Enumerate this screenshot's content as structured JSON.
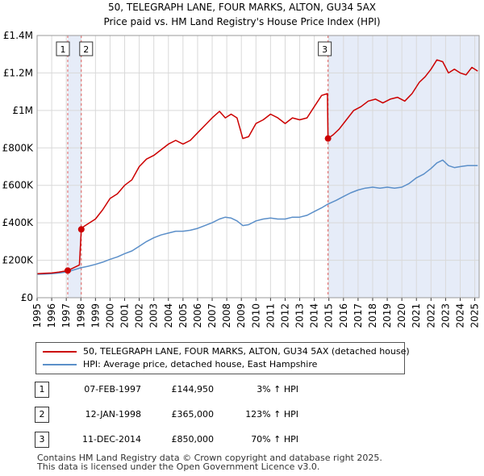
{
  "title_line1": "50, TELEGRAPH LANE, FOUR MARKS, ALTON, GU34 5AX",
  "title_line2": "Price paid vs. HM Land Registry's House Price Index (HPI)",
  "chart_data": {
    "type": "line",
    "xlim": [
      1995.0,
      2025.3
    ],
    "ylim": [
      0,
      1400000
    ],
    "y_ticks": [
      0,
      200000,
      400000,
      600000,
      800000,
      1000000,
      1200000,
      1400000
    ],
    "y_tick_labels": [
      "£0",
      "£200K",
      "£400K",
      "£600K",
      "£800K",
      "£1M",
      "£1.2M",
      "£1.4M"
    ],
    "x_ticks": [
      1995,
      1996,
      1997,
      1998,
      1999,
      2000,
      2001,
      2002,
      2003,
      2004,
      2005,
      2006,
      2007,
      2008,
      2009,
      2010,
      2011,
      2012,
      2013,
      2014,
      2015,
      2016,
      2017,
      2018,
      2019,
      2020,
      2021,
      2022,
      2023,
      2024,
      2025
    ],
    "x_tick_labels": [
      "1995",
      "1996",
      "1997",
      "1998",
      "1999",
      "2000",
      "2001",
      "2002",
      "2003",
      "2004",
      "2005",
      "2006",
      "2007",
      "2008",
      "2009",
      "2010",
      "2011",
      "2012",
      "2013",
      "2014",
      "2015",
      "2016",
      "2017",
      "2018",
      "2019",
      "2020",
      "2021",
      "2022",
      "2023",
      "2024",
      "2025"
    ],
    "grid": true,
    "series": [
      {
        "name": "50, TELEGRAPH LANE, FOUR MARKS, ALTON, GU34 5AX (detached house)",
        "color": "#cc0000",
        "x": [
          1995.0,
          1995.5,
          1996.0,
          1996.5,
          1997.1,
          1997.5,
          1997.9,
          1998.03,
          1998.2,
          1998.5,
          1999.0,
          1999.5,
          2000.0,
          2000.5,
          2001.0,
          2001.5,
          2002.0,
          2002.5,
          2003.0,
          2003.5,
          2004.0,
          2004.5,
          2005.0,
          2005.5,
          2006.0,
          2006.5,
          2007.0,
          2007.5,
          2007.9,
          2008.3,
          2008.7,
          2009.1,
          2009.5,
          2010.0,
          2010.5,
          2011.0,
          2011.5,
          2012.0,
          2012.5,
          2013.0,
          2013.5,
          2014.0,
          2014.5,
          2014.9,
          2014.94,
          2015.3,
          2015.7,
          2016.2,
          2016.7,
          2017.2,
          2017.7,
          2018.2,
          2018.7,
          2019.2,
          2019.7,
          2020.2,
          2020.7,
          2021.2,
          2021.6,
          2022.0,
          2022.4,
          2022.8,
          2023.2,
          2023.6,
          2024.0,
          2024.4,
          2024.8,
          2025.2
        ],
        "y": [
          128000,
          130000,
          132000,
          137000,
          144950,
          160000,
          175000,
          365000,
          380000,
          395000,
          420000,
          470000,
          530000,
          555000,
          600000,
          630000,
          700000,
          740000,
          760000,
          790000,
          820000,
          840000,
          820000,
          840000,
          880000,
          920000,
          960000,
          995000,
          960000,
          980000,
          960000,
          850000,
          860000,
          930000,
          950000,
          980000,
          960000,
          930000,
          960000,
          950000,
          960000,
          1020000,
          1080000,
          1090000,
          850000,
          870000,
          900000,
          950000,
          1000000,
          1020000,
          1050000,
          1060000,
          1040000,
          1060000,
          1070000,
          1050000,
          1090000,
          1150000,
          1180000,
          1220000,
          1270000,
          1260000,
          1200000,
          1220000,
          1200000,
          1190000,
          1230000,
          1210000
        ]
      },
      {
        "name": "HPI: Average price, detached house, East Hampshire",
        "color": "#5b8fc9",
        "x": [
          1995.0,
          1995.5,
          1996.0,
          1996.5,
          1997.1,
          1997.5,
          1998.0,
          1998.5,
          1999.0,
          1999.5,
          2000.0,
          2000.5,
          2001.0,
          2001.5,
          2002.0,
          2002.5,
          2003.0,
          2003.5,
          2004.0,
          2004.5,
          2005.0,
          2005.5,
          2006.0,
          2006.5,
          2007.0,
          2007.5,
          2007.9,
          2008.3,
          2008.7,
          2009.1,
          2009.5,
          2010.0,
          2010.5,
          2011.0,
          2011.5,
          2012.0,
          2012.5,
          2013.0,
          2013.5,
          2014.0,
          2014.5,
          2014.94,
          2015.5,
          2016.0,
          2016.5,
          2017.0,
          2017.5,
          2018.0,
          2018.5,
          2019.0,
          2019.5,
          2020.0,
          2020.5,
          2021.0,
          2021.5,
          2022.0,
          2022.4,
          2022.8,
          2023.2,
          2023.6,
          2024.0,
          2024.5,
          2025.2
        ],
        "y": [
          125000,
          126000,
          128000,
          132000,
          138000,
          148000,
          160000,
          168000,
          178000,
          190000,
          205000,
          218000,
          235000,
          250000,
          275000,
          300000,
          320000,
          335000,
          345000,
          355000,
          355000,
          360000,
          370000,
          385000,
          400000,
          420000,
          430000,
          425000,
          410000,
          385000,
          390000,
          410000,
          420000,
          425000,
          420000,
          420000,
          430000,
          430000,
          440000,
          460000,
          480000,
          500000,
          520000,
          540000,
          560000,
          575000,
          585000,
          590000,
          585000,
          590000,
          585000,
          590000,
          610000,
          640000,
          660000,
          690000,
          720000,
          735000,
          705000,
          695000,
          700000,
          705000,
          705000
        ]
      }
    ],
    "sales": [
      {
        "num": "1",
        "x": 1997.1,
        "y": 144950
      },
      {
        "num": "2",
        "x": 1998.03,
        "y": 365000
      },
      {
        "num": "3",
        "x": 2014.94,
        "y": 850000
      }
    ],
    "shaded_regions": [
      [
        1997.1,
        1998.03
      ],
      [
        2014.94,
        2025.3
      ]
    ]
  },
  "legend": {
    "property_label": "50, TELEGRAPH LANE, FOUR MARKS, ALTON, GU34 5AX (detached house)",
    "hpi_label": "HPI: Average price, detached house, East Hampshire",
    "property_color": "#cc0000",
    "hpi_color": "#5b8fc9"
  },
  "transactions": [
    {
      "num": "1",
      "date": "07-FEB-1997",
      "price": "£144,950",
      "hpi": "3% ↑ HPI"
    },
    {
      "num": "2",
      "date": "12-JAN-1998",
      "price": "£365,000",
      "hpi": "123% ↑ HPI"
    },
    {
      "num": "3",
      "date": "11-DEC-2014",
      "price": "£850,000",
      "hpi": "70% ↑ HPI"
    }
  ],
  "footer_line1": "Contains HM Land Registry data © Crown copyright and database right 2025.",
  "footer_line2": "This data is licensed under the Open Government Licence v3.0."
}
